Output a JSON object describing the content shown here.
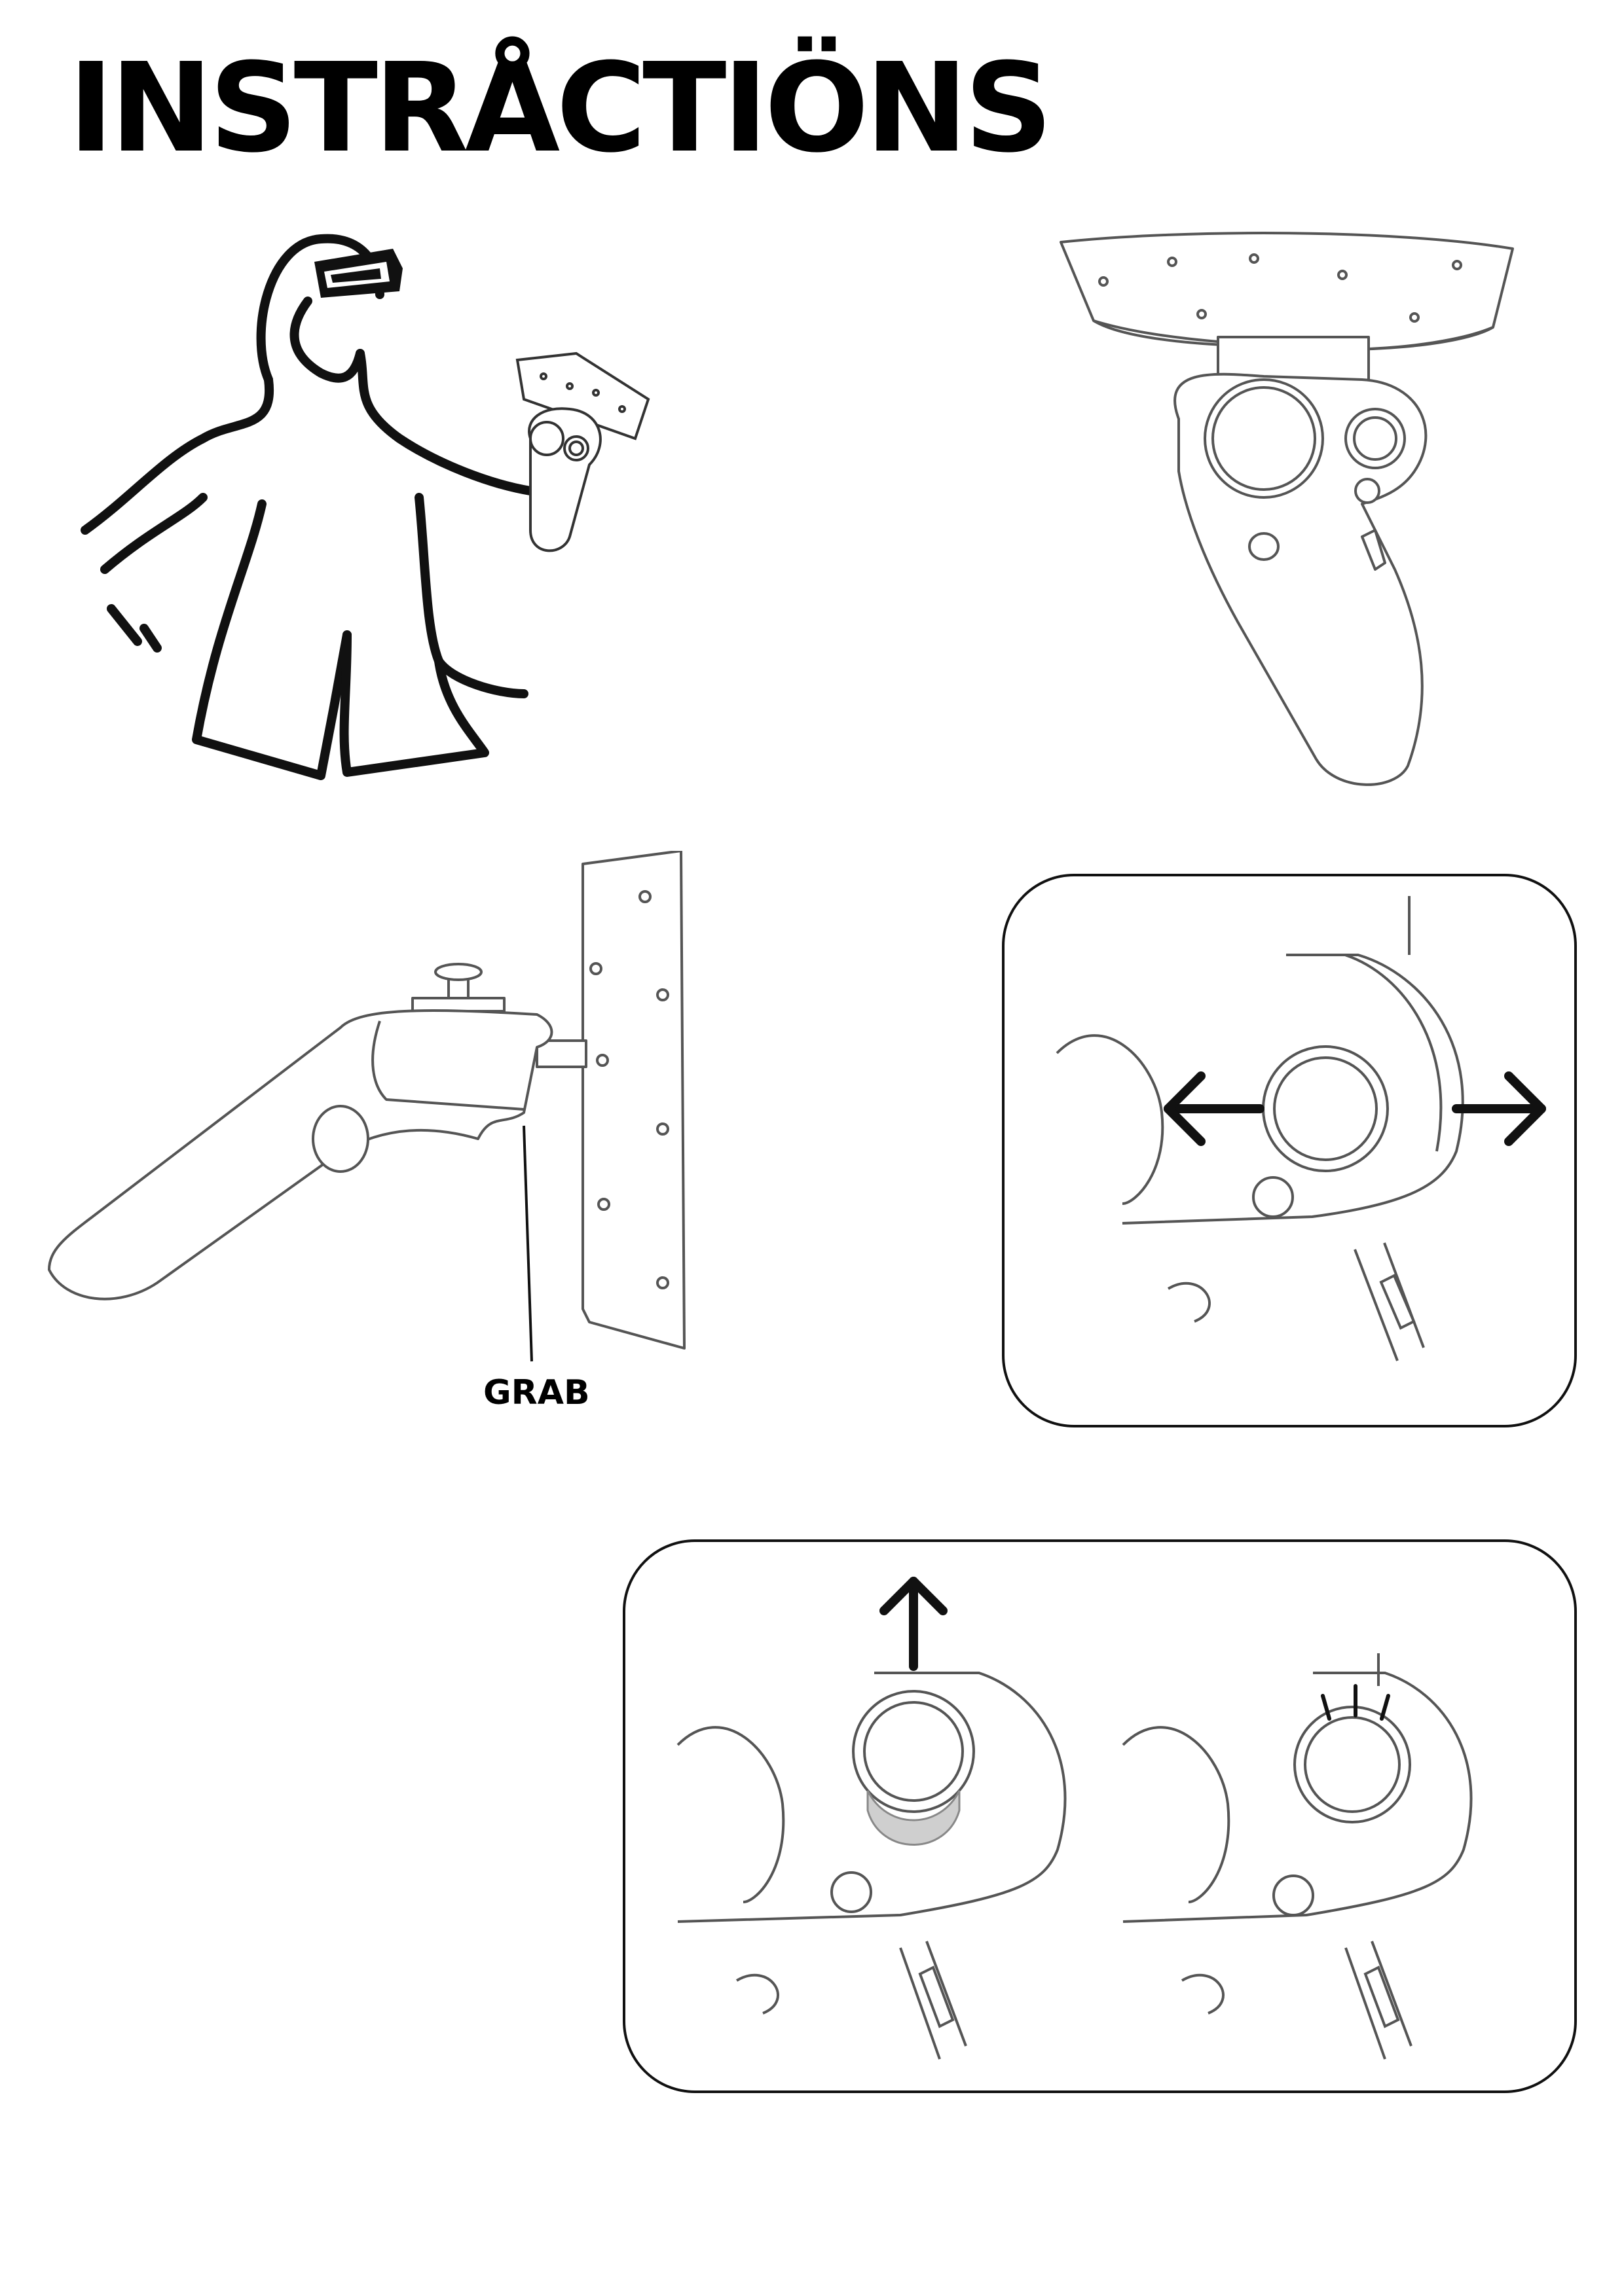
{
  "title": "INSTRÅCTIÖNS",
  "labels": {
    "grab": "GRAB"
  },
  "figures": [
    {
      "name": "person-with-headset",
      "icon": "vr-user-illustration"
    },
    {
      "name": "controller-front",
      "icon": "motion-controller-front"
    },
    {
      "name": "controller-side",
      "icon": "motion-controller-side"
    },
    {
      "name": "thumbstick-left-right",
      "icon": "arrows-left-right"
    },
    {
      "name": "thumbstick-press",
      "icon": "arrow-up-and-click"
    }
  ],
  "colors": {
    "ink": "#111111",
    "line": "#555555",
    "highlight": "#cfcfcf"
  }
}
